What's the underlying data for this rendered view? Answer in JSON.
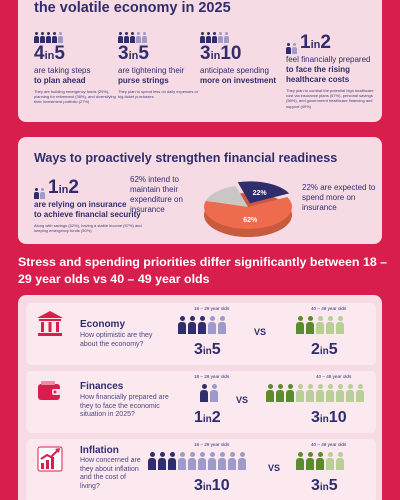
{
  "top_card": {
    "title": "the volatile economy in 2025",
    "stats": [
      {
        "num": "4",
        "of": "in",
        "den": "5",
        "total": 5,
        "filled": 4,
        "line1": "are taking steps",
        "line2": "to plan ahead",
        "fine": "They are building emergency funds (29%), planning for retirement (38%), and diversifying their investment portfolio (27%)"
      },
      {
        "num": "3",
        "of": "in",
        "den": "5",
        "total": 5,
        "filled": 3,
        "line1": "are tightening their",
        "line2": "purse strings",
        "fine": "They plan to spend less on daily expenses or big-ticket purchases"
      },
      {
        "num": "3",
        "of": "in",
        "den": "10",
        "total": 10,
        "filled": 3,
        "line1": "anticipate spending",
        "line2": "more on investment",
        "fine": ""
      },
      {
        "num": "1",
        "of": "in",
        "den": "2",
        "total": 2,
        "filled": 1,
        "line1": "feel financially prepared",
        "line2": "to face the rising",
        "line3": "healthcare costs",
        "fine": "They plan to combat the potential high healthcare cost via insurance plans (57%), personal savings (56%), and government healthcare financing and support (49%)"
      }
    ]
  },
  "mid_card": {
    "title": "Ways to proactively strengthen financial readiness",
    "stat": {
      "num": "1",
      "of": "in",
      "den": "2",
      "line1": "are relying on insurance",
      "line2": "to achieve financial security",
      "fine": "Along with savings (62%), having a stable income (57%) and keeping emergency funds (50%)"
    },
    "callout_left": "62% intend to maintain their expenditure on insurance",
    "callout_right": "22% are expected to spend more on insurance",
    "pie": {
      "slices": [
        {
          "label": "22%",
          "value": 22,
          "color": "#2f2d6d"
        },
        {
          "label": "62%",
          "value": 62,
          "color": "#ee6b4d"
        },
        {
          "label": "",
          "value": 16,
          "color": "#c9c7c4"
        }
      ]
    }
  },
  "priorities": {
    "heading": "Stress and spending priorities differ significantly between 18 – 29 year olds vs 40 – 49 year olds",
    "young_label": "18 – 29 year olds",
    "old_label": "40 – 49 year olds",
    "vs": "VS",
    "rows": [
      {
        "title": "Economy",
        "question": "How optimistic are they about the economy?",
        "young": {
          "num": "3",
          "of": "in",
          "den": "5",
          "total": 5,
          "filled": 3
        },
        "old": {
          "num": "2",
          "of": "in",
          "den": "5",
          "total": 5,
          "filled": 2
        }
      },
      {
        "title": "Finances",
        "question": "How financially prepared are they to face the economic situation in 2025?",
        "young": {
          "num": "1",
          "of": "in",
          "den": "2",
          "total": 2,
          "filled": 1
        },
        "old": {
          "num": "3",
          "of": "in",
          "den": "10",
          "total": 10,
          "filled": 3
        }
      },
      {
        "title": "Inflation",
        "question": "How concerned are they about inflation and the cost of living?",
        "young": {
          "num": "3",
          "of": "in",
          "den": "10",
          "total": 10,
          "filled": 3
        },
        "old": {
          "num": "3",
          "of": "in",
          "den": "5",
          "total": 5,
          "filled": 3
        }
      }
    ]
  },
  "colors": {
    "background": "#d81e4c",
    "card": "#f7dbe4",
    "navy": "#2f2d6d",
    "lavender": "#9d9bc9",
    "green": "#5a8c2c",
    "light_green": "#b8cf95",
    "coral": "#ee6b4d"
  }
}
